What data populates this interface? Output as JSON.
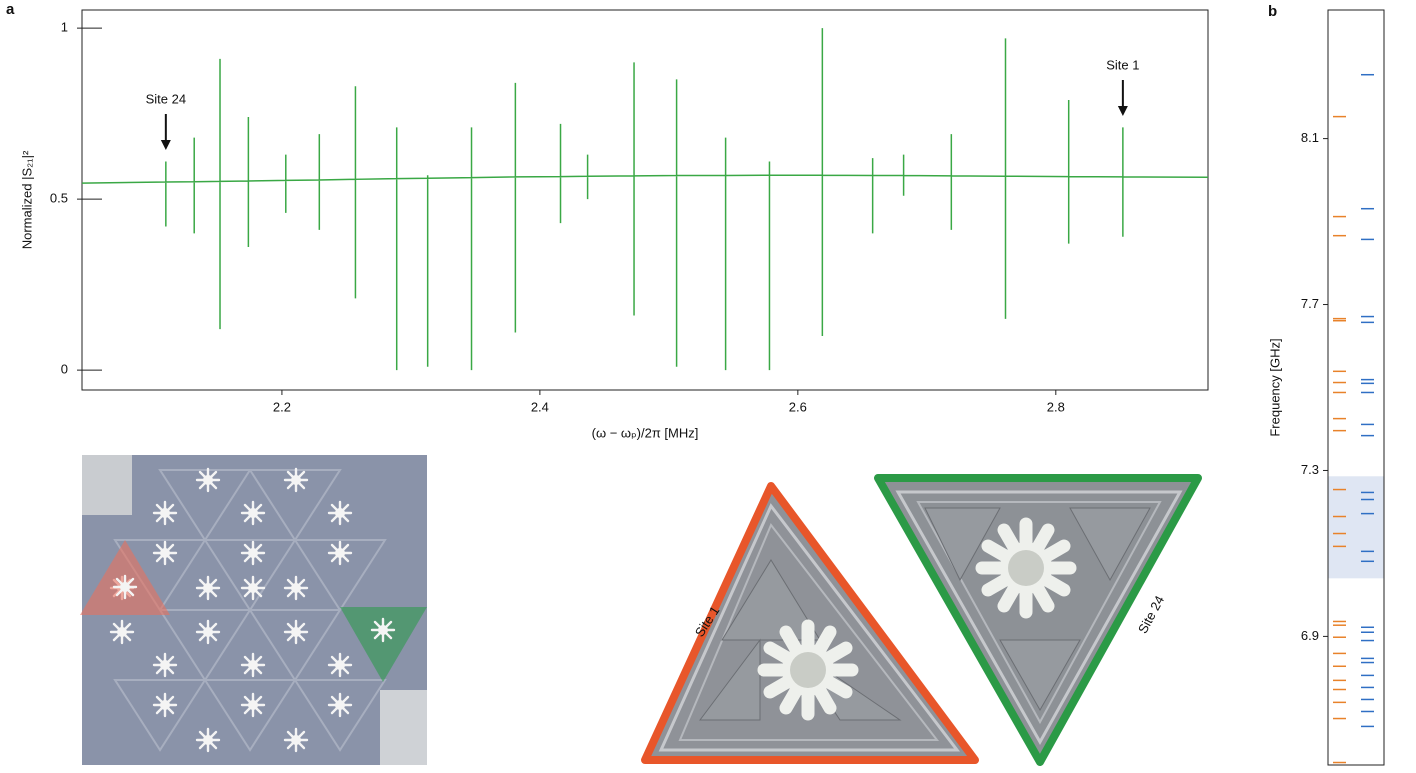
{
  "chart_data": [
    {
      "type": "line",
      "panel": "a",
      "y_label": "Normalized |S₂₁|²",
      "x_label": "(ω − ωₚ)/2π [MHz]",
      "xlim": [
        2.045,
        2.918
      ],
      "xticks": [
        2.2,
        2.4,
        2.6,
        2.8
      ],
      "ylim": [
        -0.058,
        1.053
      ],
      "yticks": [
        0,
        0.5,
        1
      ],
      "annotations": [
        {
          "text": "Site 24",
          "x": 2.11
        },
        {
          "text": "Site 1",
          "x": 2.852
        }
      ],
      "series": [
        {
          "color": "#3aa845",
          "x": [
            2.045,
            2.11,
            2.11,
            2.11,
            2.11,
            2.132,
            2.132,
            2.132,
            2.132,
            2.152,
            2.152,
            2.152,
            2.152,
            2.174,
            2.174,
            2.174,
            2.174,
            2.203,
            2.203,
            2.203,
            2.203,
            2.229,
            2.229,
            2.229,
            2.229,
            2.257,
            2.257,
            2.257,
            2.257,
            2.289,
            2.289,
            2.289,
            2.289,
            2.313,
            2.313,
            2.313,
            2.313,
            2.347,
            2.347,
            2.347,
            2.347,
            2.381,
            2.381,
            2.381,
            2.381,
            2.416,
            2.416,
            2.416,
            2.416,
            2.437,
            2.437,
            2.437,
            2.437,
            2.473,
            2.473,
            2.473,
            2.473,
            2.506,
            2.506,
            2.506,
            2.506,
            2.544,
            2.544,
            2.544,
            2.544,
            2.578,
            2.578,
            2.578,
            2.578,
            2.619,
            2.619,
            2.619,
            2.619,
            2.658,
            2.658,
            2.658,
            2.658,
            2.682,
            2.682,
            2.682,
            2.682,
            2.719,
            2.719,
            2.719,
            2.719,
            2.761,
            2.761,
            2.761,
            2.761,
            2.81,
            2.81,
            2.81,
            2.81,
            2.852,
            2.852,
            2.852,
            2.852,
            2.918
          ],
          "values": [
            0.547,
            0.55,
            0.61,
            0.42,
            0.55,
            0.551,
            0.68,
            0.4,
            0.551,
            0.552,
            0.91,
            0.12,
            0.552,
            0.553,
            0.74,
            0.36,
            0.553,
            0.555,
            0.63,
            0.46,
            0.555,
            0.556,
            0.69,
            0.41,
            0.556,
            0.558,
            0.83,
            0.21,
            0.558,
            0.56,
            0.71,
            0.0,
            0.56,
            0.561,
            0.57,
            0.01,
            0.561,
            0.563,
            0.71,
            0.0,
            0.563,
            0.565,
            0.84,
            0.11,
            0.565,
            0.566,
            0.72,
            0.43,
            0.566,
            0.567,
            0.63,
            0.5,
            0.567,
            0.568,
            0.9,
            0.16,
            0.568,
            0.569,
            0.85,
            0.01,
            0.569,
            0.569,
            0.68,
            0.0,
            0.569,
            0.57,
            0.61,
            0.0,
            0.57,
            0.57,
            1.0,
            0.1,
            0.57,
            0.569,
            0.62,
            0.4,
            0.569,
            0.569,
            0.63,
            0.51,
            0.569,
            0.568,
            0.69,
            0.41,
            0.568,
            0.567,
            0.97,
            0.15,
            0.567,
            0.566,
            0.79,
            0.37,
            0.566,
            0.565,
            0.71,
            0.39,
            0.565,
            0.564
          ]
        }
      ]
    },
    {
      "type": "levels",
      "panel": "b",
      "y_label": "Frequency [GHz]",
      "ylim": [
        6.59,
        8.41
      ],
      "yticks": [
        6.9,
        7.3,
        7.7,
        8.1
      ],
      "shaded_range": [
        7.04,
        7.286
      ],
      "shade_color": "#dfe6f3",
      "series": [
        {
          "color": "#e8822a",
          "values": [
            8.153,
            7.912,
            7.866,
            7.666,
            7.661,
            7.539,
            7.512,
            7.488,
            7.425,
            7.396,
            7.254,
            7.189,
            7.148,
            7.117,
            6.936,
            6.927,
            6.898,
            6.859,
            6.828,
            6.794,
            6.772,
            6.741,
            6.702,
            6.596
          ]
        },
        {
          "color": "#2f6fc4",
          "values": [
            8.254,
            7.931,
            7.857,
            7.671,
            7.657,
            7.519,
            7.51,
            7.488,
            7.411,
            7.384,
            7.247,
            7.23,
            7.196,
            7.105,
            7.081,
            6.922,
            6.91,
            6.89,
            6.847,
            6.837,
            6.806,
            6.777,
            6.748,
            6.719,
            6.683
          ]
        }
      ]
    }
  ],
  "micrograph": {
    "labels": [
      "Site 1",
      "Site 24"
    ]
  }
}
